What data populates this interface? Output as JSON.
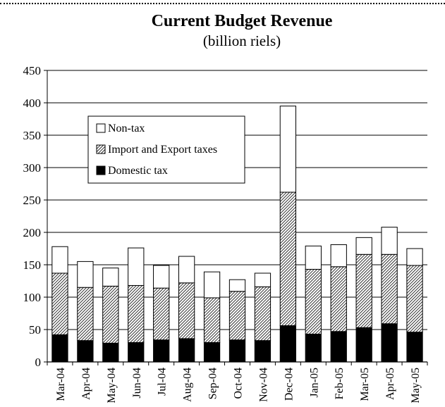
{
  "chart_data": {
    "type": "bar",
    "stacked": true,
    "title": "Current Budget Revenue",
    "subtitle": "(billion riels)",
    "xlabel": "",
    "ylabel": "",
    "ylim": [
      0,
      450
    ],
    "yticks": [
      0,
      50,
      100,
      150,
      200,
      250,
      300,
      350,
      400,
      450
    ],
    "grid": true,
    "legend_position": "upper-left",
    "categories": [
      "Mar-04",
      "Apr-04",
      "May-04",
      "Jun-04",
      "Jul-04",
      "Aug-04",
      "Sep-04",
      "Oct-04",
      "Nov-04",
      "Dec-04",
      "Jan-05",
      "Feb-05",
      "Mar-05",
      "Apr-05",
      "May-05"
    ],
    "series": [
      {
        "name": "Domestic tax",
        "pattern": "solid-black",
        "values": [
          42,
          33,
          29,
          30,
          34,
          36,
          30,
          34,
          33,
          56,
          43,
          47,
          53,
          59,
          46
        ]
      },
      {
        "name": "Import and Export taxes",
        "pattern": "hatched",
        "values": [
          95,
          82,
          88,
          88,
          80,
          86,
          69,
          75,
          83,
          206,
          100,
          100,
          113,
          107,
          103
        ]
      },
      {
        "name": "Non-tax",
        "pattern": "white",
        "values": [
          41,
          40,
          28,
          58,
          35,
          41,
          40,
          18,
          21,
          133,
          36,
          34,
          26,
          42,
          26
        ]
      }
    ],
    "legend_order": [
      "Non-tax",
      "Import and Export taxes",
      "Domestic tax"
    ]
  }
}
